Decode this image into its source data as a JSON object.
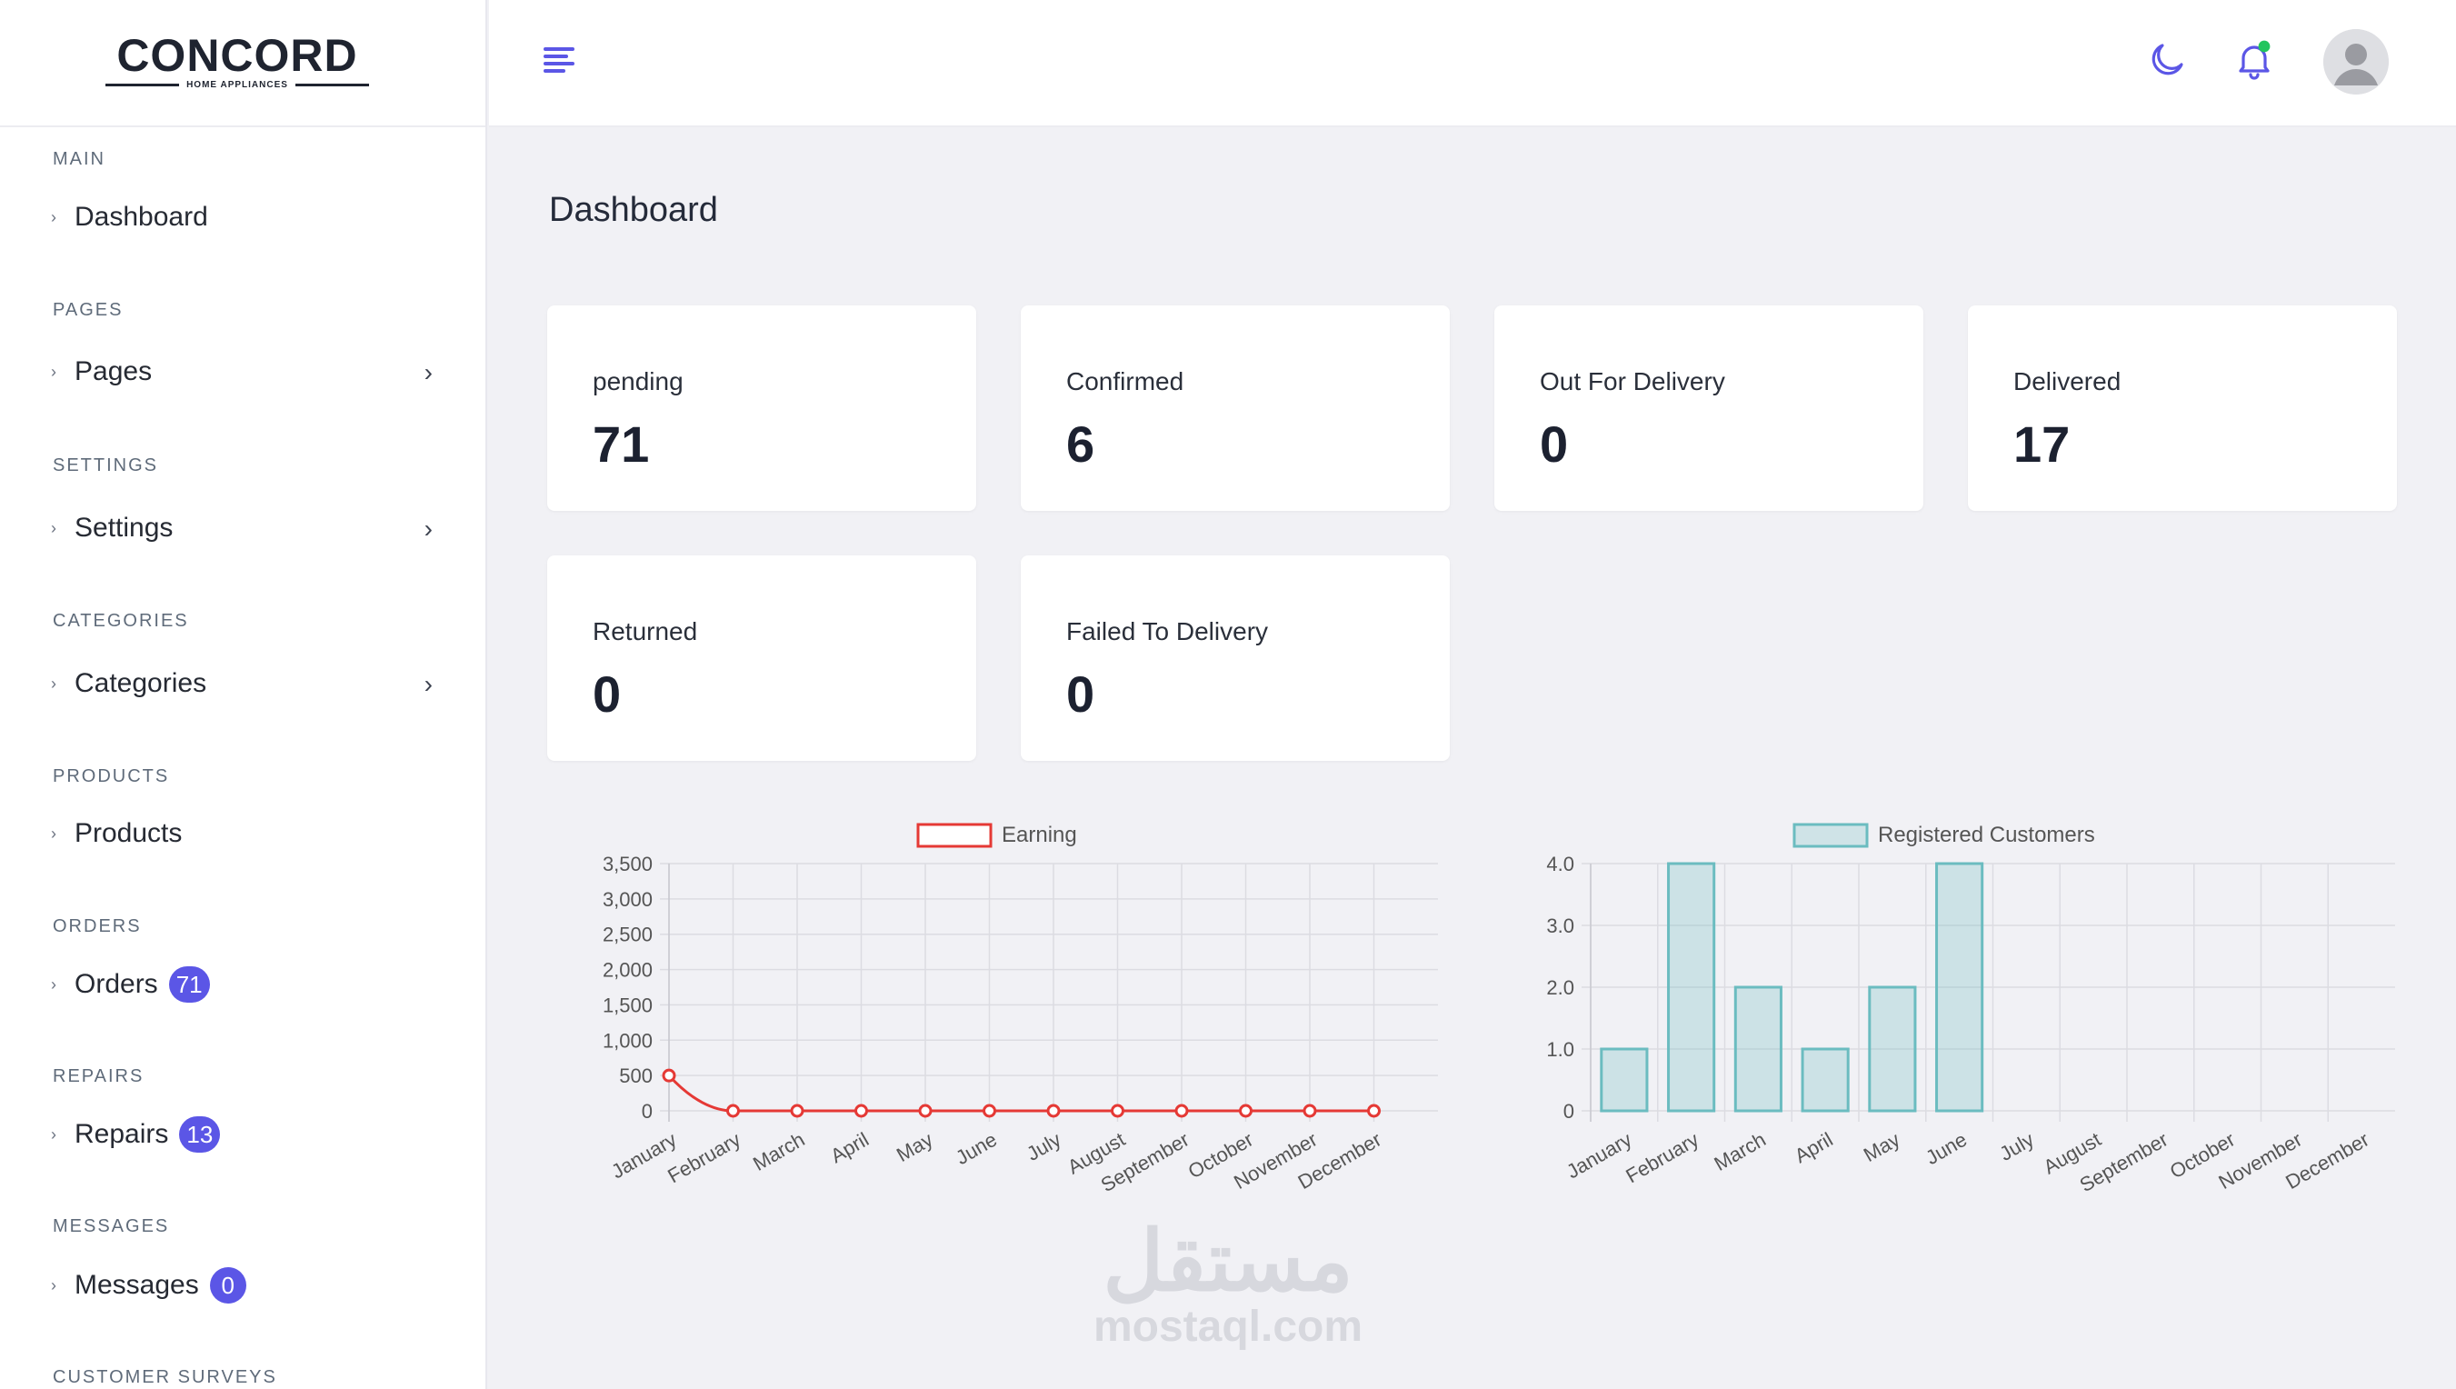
{
  "brand": {
    "name": "CONCORD",
    "tagline": "HOME APPLIANCES"
  },
  "sidebar": {
    "sections": [
      {
        "title": "MAIN",
        "items": [
          {
            "label": "Dashboard",
            "has_submenu": false
          }
        ]
      },
      {
        "title": "PAGES",
        "items": [
          {
            "label": "Pages",
            "has_submenu": true
          }
        ]
      },
      {
        "title": "SETTINGS",
        "items": [
          {
            "label": "Settings",
            "has_submenu": true
          }
        ]
      },
      {
        "title": "CATEGORIES",
        "items": [
          {
            "label": "Categories",
            "has_submenu": true
          }
        ]
      },
      {
        "title": "PRODUCTS",
        "items": [
          {
            "label": "Products",
            "has_submenu": false
          }
        ]
      },
      {
        "title": "ORDERS",
        "items": [
          {
            "label": "Orders",
            "badge": "71"
          }
        ]
      },
      {
        "title": "REPAIRS",
        "items": [
          {
            "label": "Repairs",
            "badge": "13"
          }
        ]
      },
      {
        "title": "MESSAGES",
        "items": [
          {
            "label": "Messages",
            "badge": "0"
          }
        ]
      },
      {
        "title": "CUSTOMER SURVEYS",
        "items": []
      }
    ]
  },
  "header": {
    "icons": [
      "menu-icon",
      "moon-icon",
      "bell-icon",
      "avatar-icon"
    ],
    "notification_dot_color": "#22c55e",
    "accent_color": "#5b56e6"
  },
  "main": {
    "title": "Dashboard",
    "stats": [
      {
        "label": "pending",
        "value": "71"
      },
      {
        "label": "Confirmed",
        "value": "6"
      },
      {
        "label": "Out For Delivery",
        "value": "0"
      },
      {
        "label": "Delivered",
        "value": "17"
      },
      {
        "label": "Returned",
        "value": "0"
      },
      {
        "label": "Failed To Delivery",
        "value": "0"
      }
    ]
  },
  "watermark": {
    "arabic": "مستقل",
    "latin": "mostaql.com"
  },
  "chart_data": [
    {
      "type": "line",
      "categories": [
        "January",
        "February",
        "March",
        "April",
        "May",
        "June",
        "July",
        "August",
        "September",
        "October",
        "November",
        "December"
      ],
      "series": [
        {
          "name": "Earning",
          "values": [
            500,
            0,
            0,
            0,
            0,
            0,
            0,
            0,
            0,
            0,
            0,
            0
          ],
          "color": "#e53935"
        }
      ],
      "ylim": [
        0,
        3500
      ],
      "yticks": [
        "3,500",
        "3,000",
        "2,500",
        "2,000",
        "1,500",
        "1,000",
        "500",
        "0"
      ],
      "grid": true,
      "legend": "top"
    },
    {
      "type": "bar",
      "categories": [
        "January",
        "February",
        "March",
        "April",
        "May",
        "June",
        "July",
        "August",
        "September",
        "October",
        "November",
        "December"
      ],
      "series": [
        {
          "name": "Registered Customers",
          "values": [
            1,
            4,
            2,
            1,
            2,
            4,
            0,
            0,
            0,
            0,
            0,
            0
          ],
          "color": "#6bbcc0"
        }
      ],
      "ylim": [
        0,
        4
      ],
      "yticks": [
        "4.0",
        "3.0",
        "2.0",
        "1.0",
        "0"
      ],
      "grid": true,
      "legend": "top"
    }
  ]
}
